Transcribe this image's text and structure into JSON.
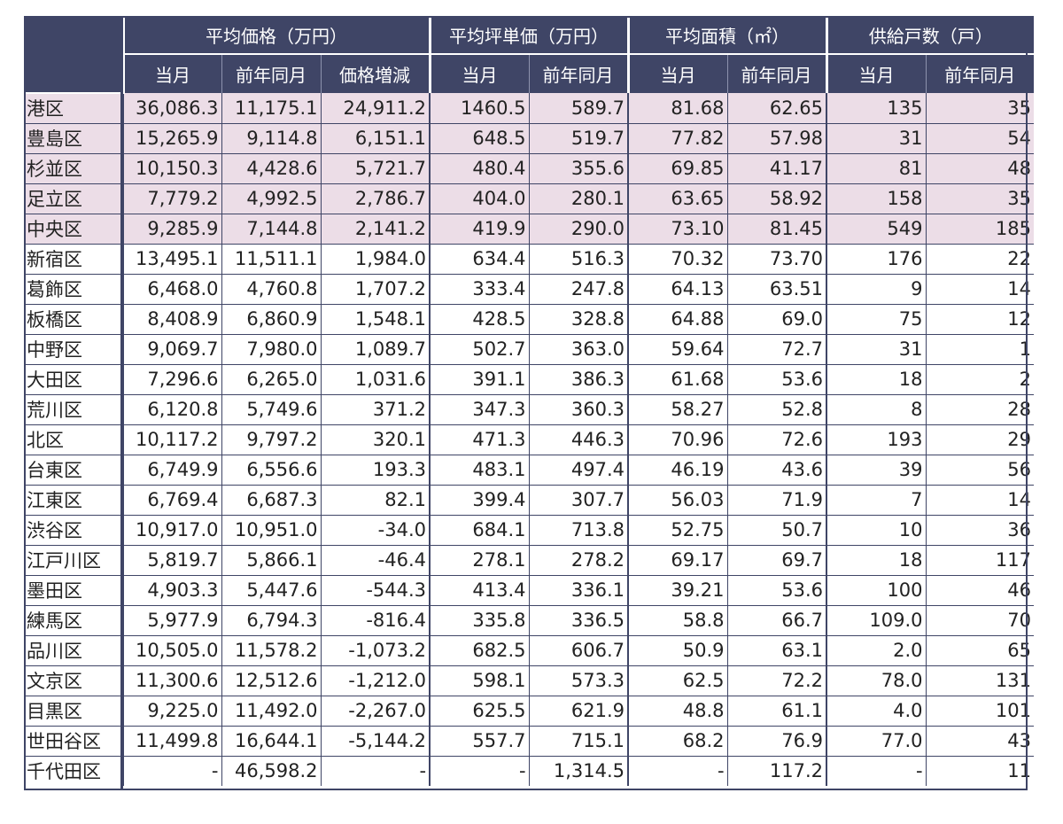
{
  "table": {
    "groups": [
      "平均価格（万円）",
      "平均坪単価（万円）",
      "平均面積（㎡）",
      "供給戸数（戸）"
    ],
    "subheaders": [
      "当月",
      "前年同月",
      "価格増減",
      "当月",
      "前年同月",
      "当月",
      "前年同月",
      "当月",
      "前年同月"
    ],
    "rows": [
      [
        "港区",
        "36,086.3",
        "11,175.1",
        "24,911.2",
        "1460.5",
        "589.7",
        "81.68",
        "62.65",
        "135",
        "35"
      ],
      [
        "豊島区",
        "15,265.9",
        "9,114.8",
        "6,151.1",
        "648.5",
        "519.7",
        "77.82",
        "57.98",
        "31",
        "54"
      ],
      [
        "杉並区",
        "10,150.3",
        "4,428.6",
        "5,721.7",
        "480.4",
        "355.6",
        "69.85",
        "41.17",
        "81",
        "48"
      ],
      [
        "足立区",
        "7,779.2",
        "4,992.5",
        "2,786.7",
        "404.0",
        "280.1",
        "63.65",
        "58.92",
        "158",
        "35"
      ],
      [
        "中央区",
        "9,285.9",
        "7,144.8",
        "2,141.2",
        "419.9",
        "290.0",
        "73.10",
        "81.45",
        "549",
        "185"
      ],
      [
        "新宿区",
        "13,495.1",
        "11,511.1",
        "1,984.0",
        "634.4",
        "516.3",
        "70.32",
        "73.70",
        "176",
        "22"
      ],
      [
        "葛飾区",
        "6,468.0",
        "4,760.8",
        "1,707.2",
        "333.4",
        "247.8",
        "64.13",
        "63.51",
        "9",
        "14"
      ],
      [
        "板橋区",
        "8,408.9",
        "6,860.9",
        "1,548.1",
        "428.5",
        "328.8",
        "64.88",
        "69.0",
        "75",
        "12"
      ],
      [
        "中野区",
        "9,069.7",
        "7,980.0",
        "1,089.7",
        "502.7",
        "363.0",
        "59.64",
        "72.7",
        "31",
        "1"
      ],
      [
        "大田区",
        "7,296.6",
        "6,265.0",
        "1,031.6",
        "391.1",
        "386.3",
        "61.68",
        "53.6",
        "18",
        "2"
      ],
      [
        "荒川区",
        "6,120.8",
        "5,749.6",
        "371.2",
        "347.3",
        "360.3",
        "58.27",
        "52.8",
        "8",
        "28"
      ],
      [
        "北区",
        "10,117.2",
        "9,797.2",
        "320.1",
        "471.3",
        "446.3",
        "70.96",
        "72.6",
        "193",
        "29"
      ],
      [
        "台東区",
        "6,749.9",
        "6,556.6",
        "193.3",
        "483.1",
        "497.4",
        "46.19",
        "43.6",
        "39",
        "56"
      ],
      [
        "江東区",
        "6,769.4",
        "6,687.3",
        "82.1",
        "399.4",
        "307.7",
        "56.03",
        "71.9",
        "7",
        "14"
      ],
      [
        "渋谷区",
        "10,917.0",
        "10,951.0",
        "-34.0",
        "684.1",
        "713.8",
        "52.75",
        "50.7",
        "10",
        "36"
      ],
      [
        "江戸川区",
        "5,819.7",
        "5,866.1",
        "-46.4",
        "278.1",
        "278.2",
        "69.17",
        "69.7",
        "18",
        "117"
      ],
      [
        "墨田区",
        "4,903.3",
        "5,447.6",
        "-544.3",
        "413.4",
        "336.1",
        "39.21",
        "53.6",
        "100",
        "46"
      ],
      [
        "練馬区",
        "5,977.9",
        "6,794.3",
        "-816.4",
        "335.8",
        "336.5",
        "58.8",
        "66.7",
        "109.0",
        "70"
      ],
      [
        "品川区",
        "10,505.0",
        "11,578.2",
        "-1,073.2",
        "682.5",
        "606.7",
        "50.9",
        "63.1",
        "2.0",
        "65"
      ],
      [
        "文京区",
        "11,300.6",
        "12,512.6",
        "-1,212.0",
        "598.1",
        "573.3",
        "62.5",
        "72.2",
        "78.0",
        "131"
      ],
      [
        "目黒区",
        "9,225.0",
        "11,492.0",
        "-2,267.0",
        "625.5",
        "621.9",
        "48.8",
        "61.1",
        "4.0",
        "101"
      ],
      [
        "世田谷区",
        "11,499.8",
        "16,644.1",
        "-5,144.2",
        "557.7",
        "715.1",
        "68.2",
        "76.9",
        "77.0",
        "43"
      ],
      [
        "千代田区",
        "-",
        "46,598.2",
        "-",
        "-",
        "1,314.5",
        "-",
        "117.2",
        "-",
        "11"
      ]
    ],
    "highlighted_row_count": 5,
    "colors": {
      "header_bg": "#3f4566",
      "highlight_bg": "#ecdde7",
      "border": "#3f4566"
    }
  }
}
